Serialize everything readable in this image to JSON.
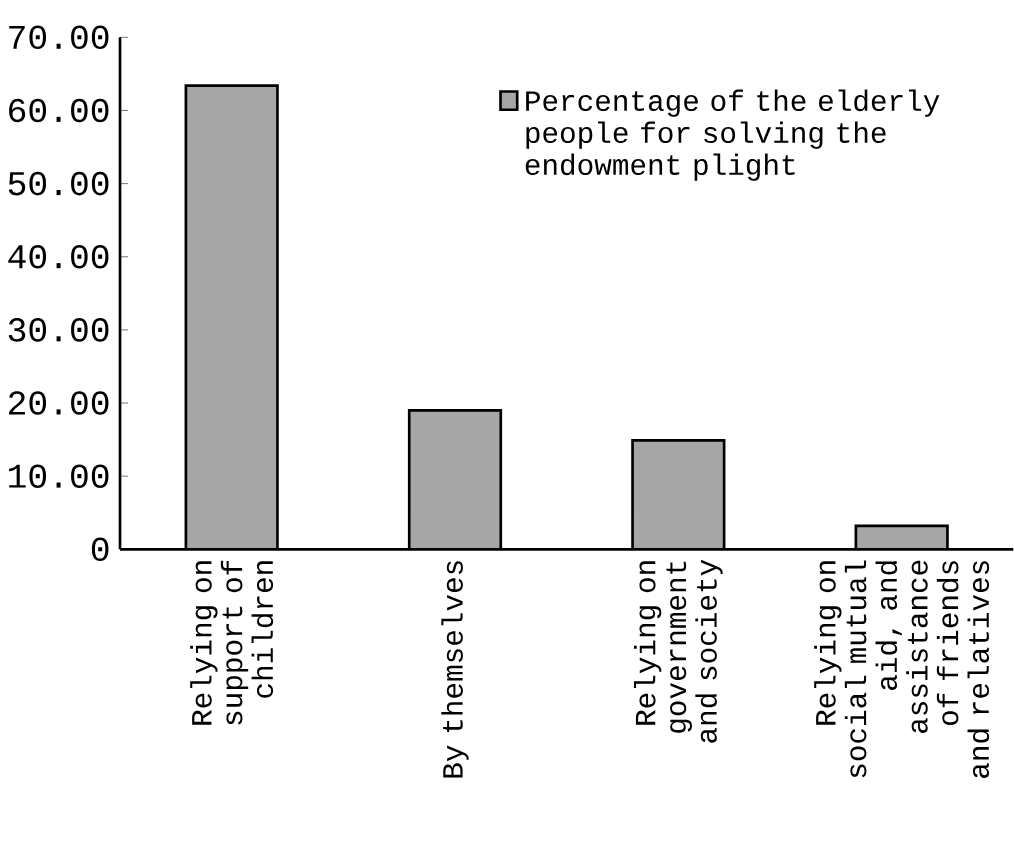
{
  "chart_data": {
    "type": "bar",
    "categories": [
      "Relying on support of children",
      "By themselves",
      "Relying on government and society",
      "Relying on social mutual aid, and assistance of friends and relatives"
    ],
    "series": [
      {
        "name": "Percentage of the elderly people for solving the endowment plight",
        "color": "#a6a6a6",
        "values": [
          63.4,
          19.0,
          14.9,
          3.2
        ]
      }
    ],
    "ylim": [
      0,
      70
    ],
    "yticks": [
      0,
      {
        "value": 10,
        "label": "10.00"
      },
      {
        "value": 20,
        "label": "20.00"
      },
      {
        "value": 30,
        "label": "30.00"
      },
      {
        "value": 40,
        "label": "40.00"
      },
      {
        "value": 50,
        "label": "50.00"
      },
      {
        "value": 60,
        "label": "60.00"
      },
      {
        "value": 70,
        "label": "70.00"
      }
    ],
    "legend": "top right",
    "grid": false
  }
}
